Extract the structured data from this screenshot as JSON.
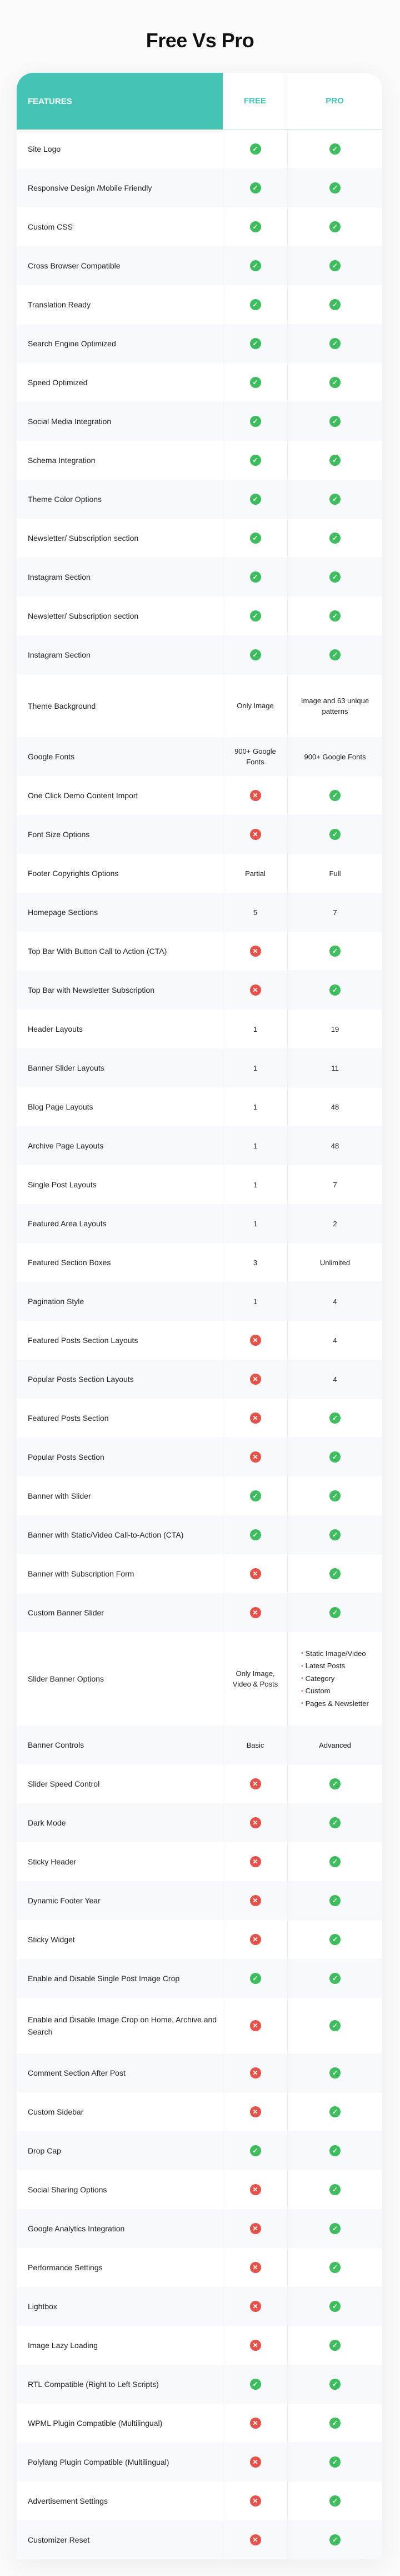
{
  "title": "Free Vs Pro",
  "header": {
    "features": "FEATURES",
    "free": "FREE",
    "pro": "PRO"
  },
  "colors": {
    "accent": "#45c4b5",
    "check": "#3dbd5e",
    "cross": "#e5524a"
  },
  "rows": [
    {
      "feature": "Site Logo",
      "free": "check",
      "pro": "check"
    },
    {
      "feature": "Responsive Design /Mobile Friendly",
      "free": "check",
      "pro": "check"
    },
    {
      "feature": "Custom CSS",
      "free": "check",
      "pro": "check"
    },
    {
      "feature": "Cross Browser Compatible",
      "free": "check",
      "pro": "check"
    },
    {
      "feature": "Translation Ready",
      "free": "check",
      "pro": "check"
    },
    {
      "feature": "Search Engine Optimized",
      "free": "check",
      "pro": "check"
    },
    {
      "feature": "Speed Optimized",
      "free": "check",
      "pro": "check"
    },
    {
      "feature": "Social Media Integration",
      "free": "check",
      "pro": "check"
    },
    {
      "feature": "Schema Integration",
      "free": "check",
      "pro": "check"
    },
    {
      "feature": "Theme Color Options",
      "free": "check",
      "pro": "check"
    },
    {
      "feature": "Newsletter/ Subscription section",
      "free": "check",
      "pro": "check"
    },
    {
      "feature": "Instagram Section",
      "free": "check",
      "pro": "check"
    },
    {
      "feature": "Newsletter/ Subscription section",
      "free": "check",
      "pro": "check"
    },
    {
      "feature": "Instagram Section",
      "free": "check",
      "pro": "check"
    },
    {
      "feature": "Theme Background",
      "free": "Only Image",
      "pro": "Image and 63 unique patterns"
    },
    {
      "feature": "Google Fonts",
      "free": "900+ Google Fonts",
      "pro": "900+ Google Fonts"
    },
    {
      "feature": "One Click Demo Content Import",
      "free": "cross",
      "pro": "check"
    },
    {
      "feature": "Font Size Options",
      "free": "cross",
      "pro": "check"
    },
    {
      "feature": "Footer Copyrights Options",
      "free": "Partial",
      "pro": "Full"
    },
    {
      "feature": "Homepage Sections",
      "free": "5",
      "pro": "7"
    },
    {
      "feature": "Top Bar With Button Call to Action (CTA)",
      "free": "cross",
      "pro": "check"
    },
    {
      "feature": "Top Bar with Newsletter Subscription",
      "free": "cross",
      "pro": "check"
    },
    {
      "feature": "Header Layouts",
      "free": "1",
      "pro": "19"
    },
    {
      "feature": "Banner Slider Layouts",
      "free": "1",
      "pro": "11"
    },
    {
      "feature": "Blog Page Layouts",
      "free": "1",
      "pro": "48"
    },
    {
      "feature": "Archive Page Layouts",
      "free": "1",
      "pro": "48"
    },
    {
      "feature": "Single Post Layouts",
      "free": "1",
      "pro": "7"
    },
    {
      "feature": "Featured Area Layouts",
      "free": "1",
      "pro": "2"
    },
    {
      "feature": "Featured Section Boxes",
      "free": "3",
      "pro": "Unlimited"
    },
    {
      "feature": "Pagination Style",
      "free": "1",
      "pro": "4"
    },
    {
      "feature": "Featured Posts Section Layouts",
      "free": "cross",
      "pro": "4"
    },
    {
      "feature": "Popular Posts Section Layouts",
      "free": "cross",
      "pro": "4"
    },
    {
      "feature": "Featured Posts Section",
      "free": "cross",
      "pro": "check"
    },
    {
      "feature": "Popular Posts Section",
      "free": "cross",
      "pro": "check"
    },
    {
      "feature": "Banner with Slider",
      "free": "check",
      "pro": "check"
    },
    {
      "feature": "Banner with Static/Video Call-to-Action (CTA)",
      "free": "check",
      "pro": "check"
    },
    {
      "feature": "Banner with Subscription Form",
      "free": "cross",
      "pro": "check"
    },
    {
      "feature": "Custom Banner Slider",
      "free": "cross",
      "pro": "check"
    },
    {
      "feature": "Slider Banner Options",
      "free": "Only Image, Video & Posts",
      "pro": [
        "Static Image/Video",
        "Latest Posts",
        "Category",
        "Custom",
        "Pages & Newsletter"
      ]
    },
    {
      "feature": "Banner Controls",
      "free": "Basic",
      "pro": "Advanced"
    },
    {
      "feature": "Slider Speed Control",
      "free": "cross",
      "pro": "check"
    },
    {
      "feature": "Dark Mode",
      "free": "cross",
      "pro": "check"
    },
    {
      "feature": "Sticky Header",
      "free": "cross",
      "pro": "check"
    },
    {
      "feature": "Dynamic Footer Year",
      "free": "cross",
      "pro": "check"
    },
    {
      "feature": "Sticky Widget",
      "free": "cross",
      "pro": "check"
    },
    {
      "feature": "Enable and Disable Single Post Image Crop",
      "free": "check",
      "pro": "check"
    },
    {
      "feature": "Enable and Disable Image Crop on Home, Archive and Search",
      "free": "cross",
      "pro": "check"
    },
    {
      "feature": "Comment Section After Post",
      "free": "cross",
      "pro": "check"
    },
    {
      "feature": "Custom Sidebar",
      "free": "cross",
      "pro": "check"
    },
    {
      "feature": "Drop Cap",
      "free": "check",
      "pro": "check"
    },
    {
      "feature": "Social Sharing Options",
      "free": "cross",
      "pro": "check"
    },
    {
      "feature": "Google Analytics Integration",
      "free": "cross",
      "pro": "check"
    },
    {
      "feature": "Performance Settings",
      "free": "cross",
      "pro": "check"
    },
    {
      "feature": "Lightbox",
      "free": "cross",
      "pro": "check"
    },
    {
      "feature": "Image Lazy Loading",
      "free": "cross",
      "pro": "check"
    },
    {
      "feature": "RTL Compatible (Right to Left Scripts)",
      "free": "check",
      "pro": "check"
    },
    {
      "feature": "WPML Plugin Compatible (Multilingual)",
      "free": "cross",
      "pro": "check"
    },
    {
      "feature": "Polylang Plugin Compatible (Multilingual)",
      "free": "cross",
      "pro": "check"
    },
    {
      "feature": "Advertisement Settings",
      "free": "cross",
      "pro": "check"
    },
    {
      "feature": "Customizer Reset",
      "free": "cross",
      "pro": "check"
    }
  ]
}
